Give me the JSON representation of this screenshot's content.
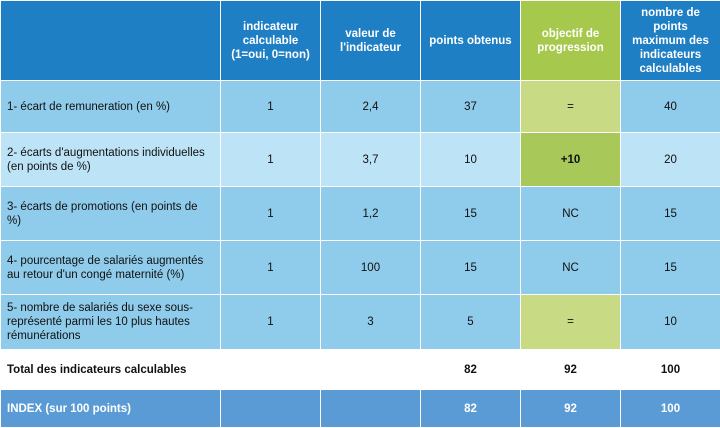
{
  "headers": {
    "col1": "indicateur calculable (1=oui, 0=non)",
    "col2": "valeur de l'indicateur",
    "col3": "points obtenus",
    "col4": "objectif de progression",
    "col5": "nombre de points maximum des indicateurs calculables"
  },
  "rows": [
    {
      "label": "1- écart de remuneration (en %)",
      "calc": "1",
      "valeur": "2,4",
      "points": "37",
      "objectif": "=",
      "max": "40"
    },
    {
      "label": "2- écarts d'augmentations individuelles (en points de %)",
      "calc": "1",
      "valeur": "3,7",
      "points": "10",
      "objectif": "+10",
      "max": "20"
    },
    {
      "label": "3- écarts de promotions (en points de %)",
      "calc": "1",
      "valeur": "1,2",
      "points": "15",
      "objectif": "NC",
      "max": "15"
    },
    {
      "label": "4- pourcentage de salariés augmentés au retour d'un congé maternité (%)",
      "calc": "1",
      "valeur": "100",
      "points": "15",
      "objectif": "NC",
      "max": "15"
    },
    {
      "label": "5- nombre de salariés du sexe sous-représenté parmi les 10 plus hautes rémunérations",
      "calc": "1",
      "valeur": "3",
      "points": "5",
      "objectif": "=",
      "max": "10"
    }
  ],
  "total": {
    "label": "Total des indicateurs calculables",
    "points": "82",
    "objectif": "92",
    "max": "100"
  },
  "index": {
    "label": "INDEX (sur 100 points)",
    "points": "82",
    "objectif": "92",
    "max": "100"
  },
  "colors": {
    "header": "#1f7fc4",
    "objective_header": "#a6c94d",
    "row_dark": "#8fcbea",
    "row_light": "#bde3f6",
    "index_row": "#5b9bd5"
  }
}
